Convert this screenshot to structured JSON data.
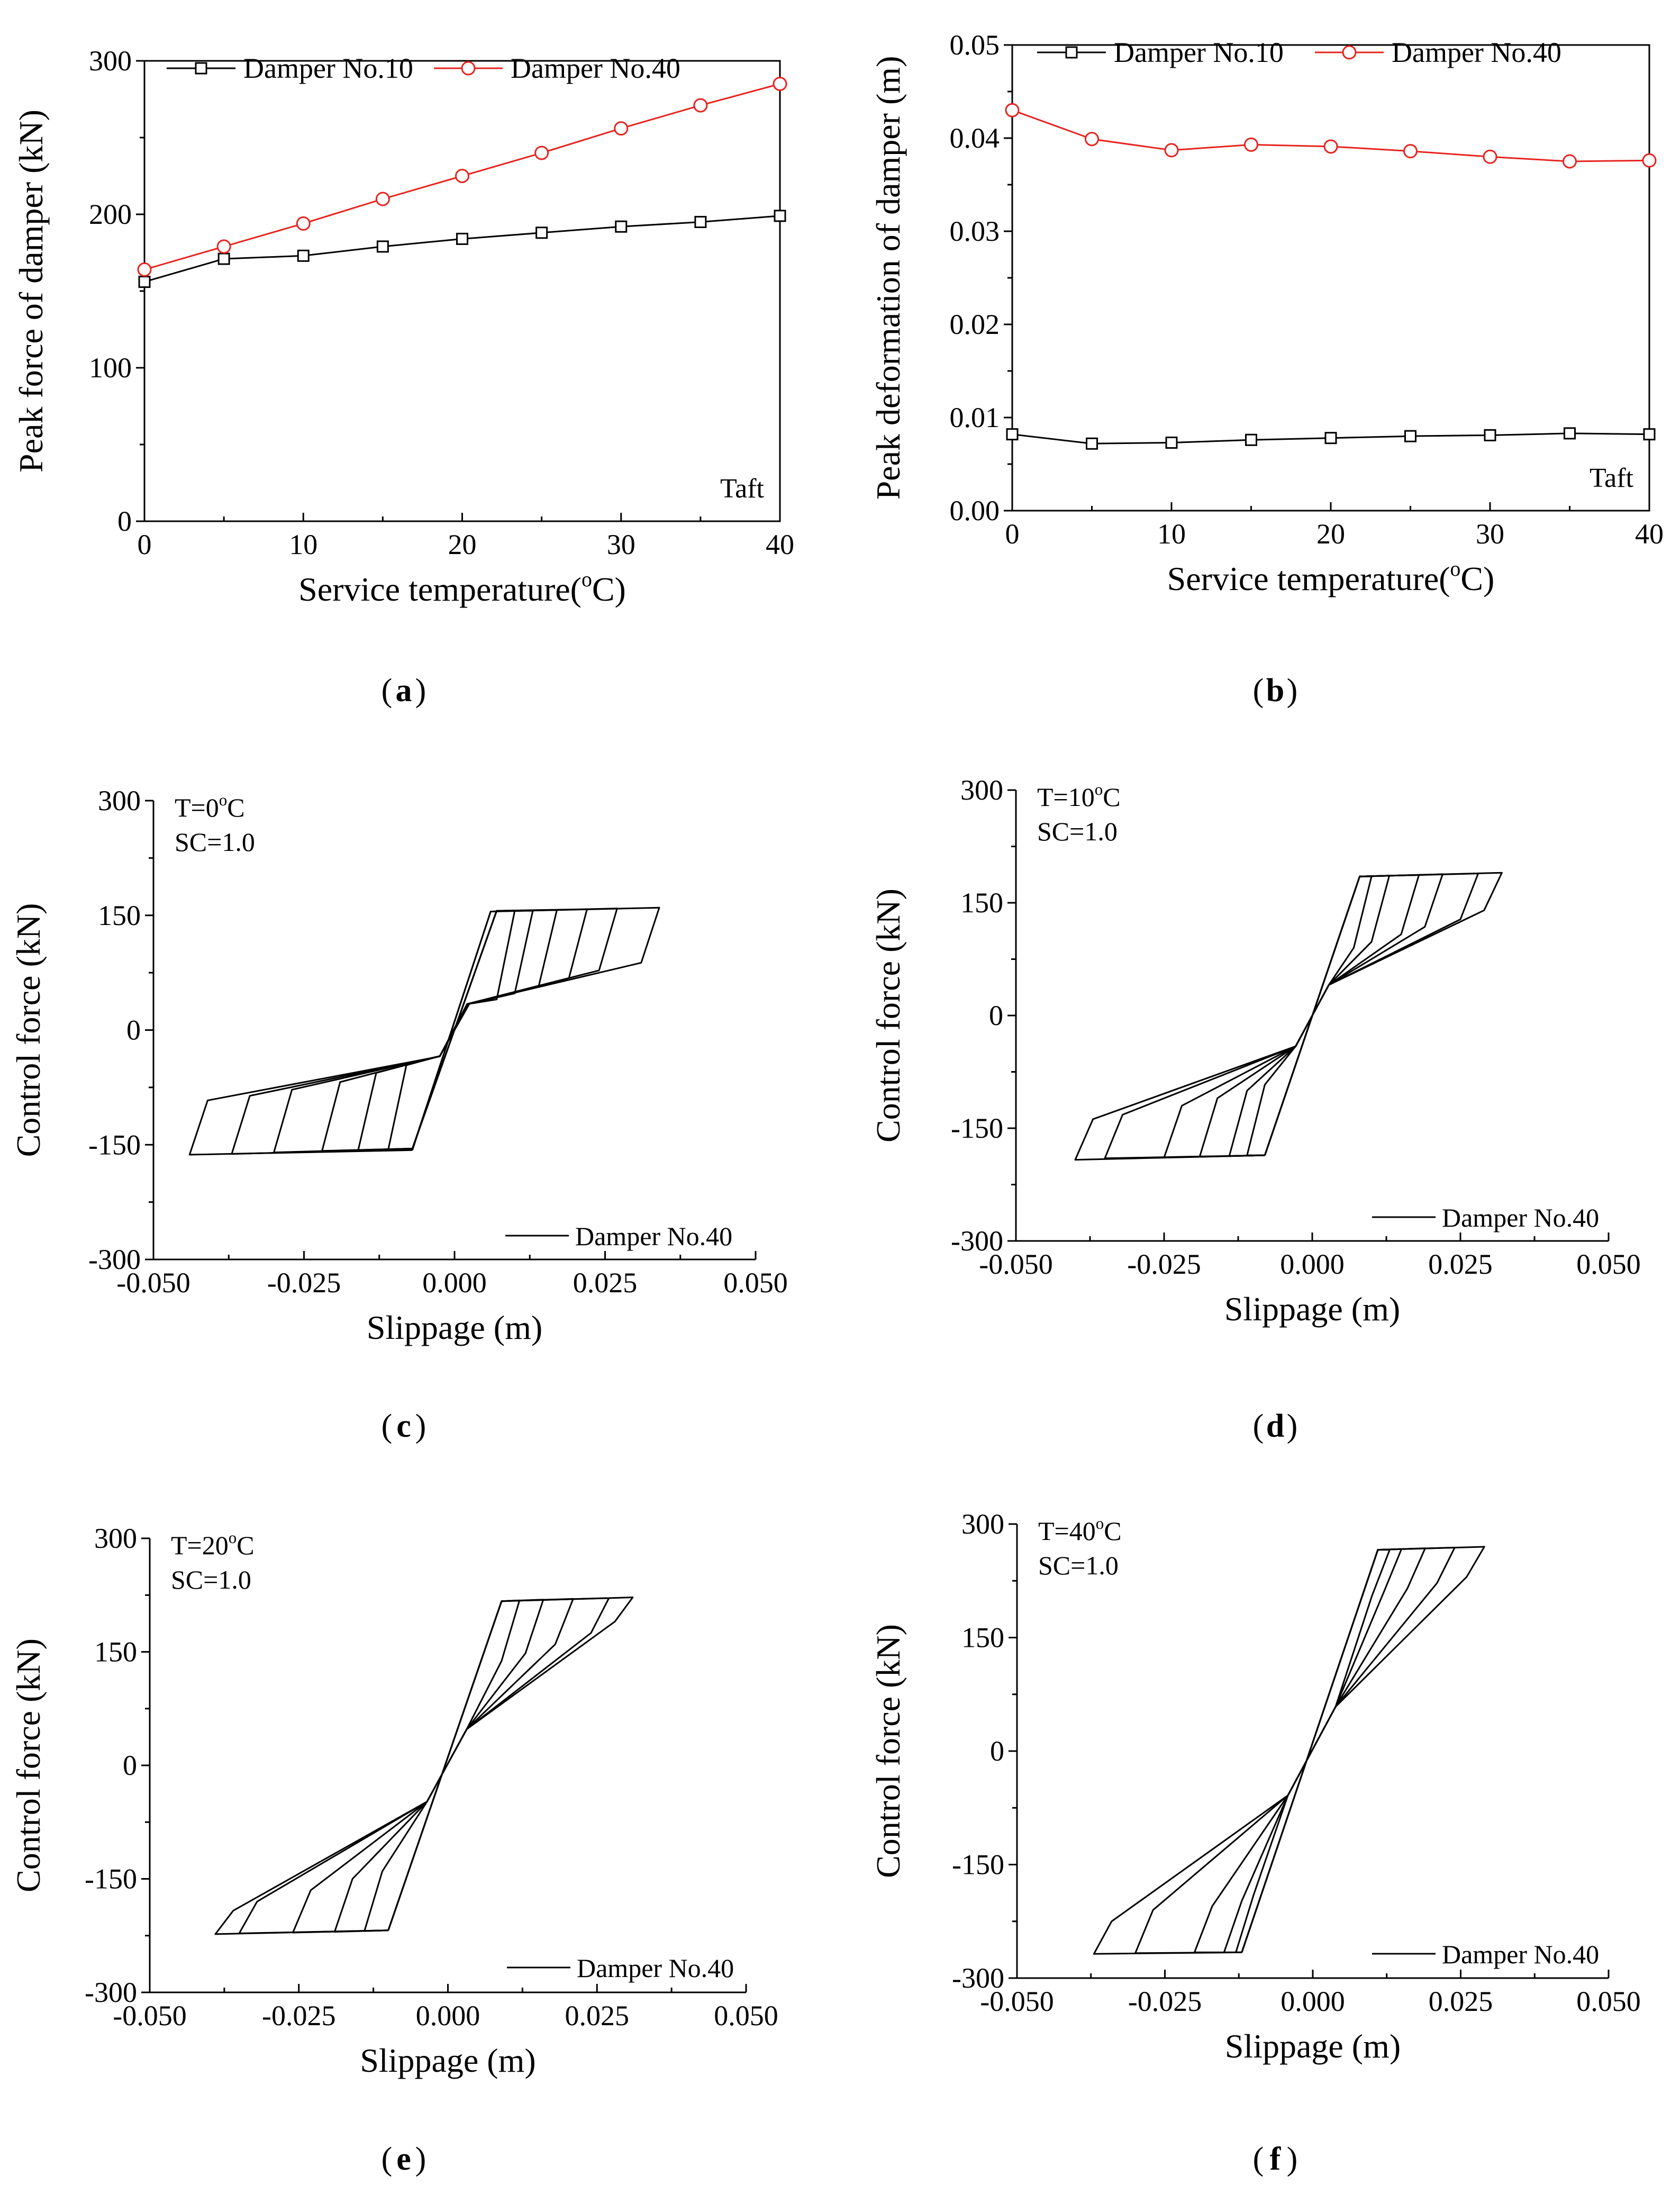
{
  "colors": {
    "black": "#000000",
    "red": "#e8231f",
    "white": "#ffffff"
  },
  "chart_data": [
    {
      "id": "a",
      "type": "line",
      "panel_label": "a",
      "xlabel": "Service temperature(°C)",
      "ylabel": "Peak force of damper (kN)",
      "xlim": [
        0,
        40
      ],
      "ylim": [
        0,
        300
      ],
      "xticks": [
        0,
        10,
        20,
        30,
        40
      ],
      "yticks": [
        0,
        100,
        200,
        300
      ],
      "x": [
        0,
        5,
        10,
        15,
        20,
        25,
        30,
        35,
        40
      ],
      "series": [
        {
          "name": "Damper No.10",
          "marker": "square",
          "color": "#000000",
          "values": [
            156,
            171,
            173,
            179,
            184,
            188,
            192,
            195,
            199
          ]
        },
        {
          "name": "Damper No.40",
          "marker": "circle",
          "color": "#e8231f",
          "values": [
            164,
            179,
            194,
            210,
            225,
            240,
            256,
            271,
            285
          ]
        }
      ],
      "annotation": "Taft",
      "legend_position": "top"
    },
    {
      "id": "b",
      "type": "line",
      "panel_label": "b",
      "xlabel": "Service temperature(°C)",
      "ylabel": "Peak deformation of damper (m)",
      "xlim": [
        0,
        40
      ],
      "ylim": [
        0,
        0.05
      ],
      "xticks": [
        0,
        10,
        20,
        30,
        40
      ],
      "yticks": [
        0.0,
        0.01,
        0.02,
        0.03,
        0.04,
        0.05
      ],
      "x": [
        0,
        5,
        10,
        15,
        20,
        25,
        30,
        35,
        40
      ],
      "series": [
        {
          "name": "Damper No.10",
          "marker": "square",
          "color": "#000000",
          "values": [
            0.0082,
            0.0072,
            0.0073,
            0.0076,
            0.0078,
            0.008,
            0.0081,
            0.0083,
            0.0082
          ]
        },
        {
          "name": "Damper No.40",
          "marker": "circle",
          "color": "#e8231f",
          "values": [
            0.043,
            0.0399,
            0.0387,
            0.0393,
            0.0391,
            0.0386,
            0.038,
            0.0375,
            0.0376
          ]
        }
      ],
      "annotation": "Taft",
      "legend_position": "top"
    },
    {
      "id": "c",
      "type": "line",
      "subtype": "hysteresis",
      "panel_label": "c",
      "xlabel": "Slippage (m)",
      "ylabel": "Control force (kN)",
      "xlim": [
        -0.05,
        0.05
      ],
      "ylim": [
        -300,
        300
      ],
      "xticks": [
        -0.05,
        -0.025,
        0.0,
        0.025,
        0.05
      ],
      "xtick_labels": [
        "-0.050",
        "-0.025",
        "0.000",
        "0.025",
        "0.050"
      ],
      "yticks": [
        -300,
        -150,
        0,
        150,
        300
      ],
      "texts": [
        "T=0°C",
        "SC=1.0"
      ],
      "legend": "Damper No.40",
      "legend_position": "bottom-right",
      "series": [
        {
          "name": "Damper No.40",
          "color": "#000000",
          "loops": [
            {
              "pos": {
                "xs": 0.006,
                "ys": 155,
                "xe": 0.034,
                "f": 160,
                "ret": 88
              },
              "neg": {
                "xs": -0.007,
                "ys": -157,
                "xe": -0.044,
                "f": -163,
                "ret": -92
              }
            },
            {
              "pos": {
                "xs": 0.006,
                "ys": 155,
                "xe": 0.027,
                "f": 159,
                "ret": 78
              },
              "neg": {
                "xs": -0.007,
                "ys": -156,
                "xe": -0.037,
                "f": -162,
                "ret": -86
              }
            },
            {
              "pos": {
                "xs": 0.007,
                "ys": 156,
                "xe": 0.022,
                "f": 158,
                "ret": 68
              },
              "neg": {
                "xs": -0.007,
                "ys": -155,
                "xe": -0.03,
                "f": -160,
                "ret": -78
              }
            },
            {
              "pos": {
                "xs": 0.007,
                "ys": 156,
                "xe": 0.017,
                "f": 157,
                "ret": 58
              },
              "neg": {
                "xs": -0.007,
                "ys": -155,
                "xe": -0.022,
                "f": -158,
                "ret": -68
              }
            },
            {
              "pos": {
                "xs": 0.007,
                "ys": 156,
                "xe": 0.013,
                "f": 156,
                "ret": 48
              },
              "neg": {
                "xs": -0.007,
                "ys": -155,
                "xe": -0.016,
                "f": -157,
                "ret": -56
              }
            },
            {
              "pos": {
                "xs": 0.007,
                "ys": 156,
                "xe": 0.01,
                "f": 156,
                "ret": 40
              },
              "neg": {
                "xs": -0.007,
                "ys": -155,
                "xe": -0.011,
                "f": -156,
                "ret": -46
              }
            }
          ]
        }
      ]
    },
    {
      "id": "d",
      "type": "line",
      "subtype": "hysteresis",
      "panel_label": "d",
      "xlabel": "Slippage (m)",
      "ylabel": "Control force (kN)",
      "xlim": [
        -0.05,
        0.05
      ],
      "ylim": [
        -300,
        300
      ],
      "xticks": [
        -0.05,
        -0.025,
        0.0,
        0.025,
        0.05
      ],
      "xtick_labels": [
        "-0.050",
        "-0.025",
        "0.000",
        "0.025",
        "0.050"
      ],
      "yticks": [
        -300,
        -150,
        0,
        150,
        300
      ],
      "texts": [
        "T=10°C",
        "SC=1.0"
      ],
      "legend": "Damper No.40",
      "legend_position": "bottom-right",
      "series": [
        {
          "name": "Damper No.40",
          "color": "#000000",
          "loops": [
            {
              "pos": {
                "xs": 0.008,
                "ys": 185,
                "xe": 0.032,
                "f": 190,
                "ret": 140
              },
              "neg": {
                "xs": -0.008,
                "ys": -186,
                "xe": -0.04,
                "f": -192,
                "ret": -138
              }
            },
            {
              "pos": {
                "xs": 0.008,
                "ys": 185,
                "xe": 0.028,
                "f": 189,
                "ret": 128
              },
              "neg": {
                "xs": -0.008,
                "ys": -186,
                "xe": -0.035,
                "f": -190,
                "ret": -132
              }
            },
            {
              "pos": {
                "xs": 0.008,
                "ys": 185,
                "xe": 0.022,
                "f": 188,
                "ret": 118
              },
              "neg": {
                "xs": -0.008,
                "ys": -186,
                "xe": -0.025,
                "f": -189,
                "ret": -120
              }
            },
            {
              "pos": {
                "xs": 0.008,
                "ys": 185,
                "xe": 0.018,
                "f": 187,
                "ret": 108
              },
              "neg": {
                "xs": -0.008,
                "ys": -186,
                "xe": -0.019,
                "f": -188,
                "ret": -110
              }
            },
            {
              "pos": {
                "xs": 0.008,
                "ys": 185,
                "xe": 0.013,
                "f": 186,
                "ret": 98
              },
              "neg": {
                "xs": -0.008,
                "ys": -186,
                "xe": -0.014,
                "f": -187,
                "ret": -100
              }
            },
            {
              "pos": {
                "xs": 0.008,
                "ys": 185,
                "xe": 0.01,
                "f": 185,
                "ret": 90
              },
              "neg": {
                "xs": -0.008,
                "ys": -186,
                "xe": -0.011,
                "f": -186,
                "ret": -92
              }
            }
          ]
        }
      ]
    },
    {
      "id": "e",
      "type": "line",
      "subtype": "hysteresis",
      "panel_label": "e",
      "xlabel": "Slippage (m)",
      "ylabel": "Control force (kN)",
      "xlim": [
        -0.05,
        0.05
      ],
      "ylim": [
        -300,
        300
      ],
      "xticks": [
        -0.05,
        -0.025,
        0.0,
        0.025,
        0.05
      ],
      "xtick_labels": [
        "-0.050",
        "-0.025",
        "0.000",
        "0.025",
        "0.050"
      ],
      "yticks": [
        -300,
        -150,
        0,
        150,
        300
      ],
      "texts": [
        "T=20°C",
        "SC=1.0"
      ],
      "legend": "Damper No.40",
      "legend_position": "bottom-right",
      "series": [
        {
          "name": "Damper No.40",
          "color": "#000000",
          "loops": [
            {
              "pos": {
                "xs": 0.009,
                "ys": 217,
                "xe": 0.031,
                "f": 222,
                "ret": 190
              },
              "neg": {
                "xs": -0.01,
                "ys": -218,
                "xe": -0.039,
                "f": -223,
                "ret": -192
              }
            },
            {
              "pos": {
                "xs": 0.009,
                "ys": 217,
                "xe": 0.027,
                "f": 221,
                "ret": 175
              },
              "neg": {
                "xs": -0.01,
                "ys": -218,
                "xe": -0.035,
                "f": -222,
                "ret": -180
              }
            },
            {
              "pos": {
                "xs": 0.009,
                "ys": 217,
                "xe": 0.021,
                "f": 220,
                "ret": 160
              },
              "neg": {
                "xs": -0.01,
                "ys": -218,
                "xe": -0.026,
                "f": -221,
                "ret": -165
              }
            },
            {
              "pos": {
                "xs": 0.009,
                "ys": 217,
                "xe": 0.016,
                "f": 219,
                "ret": 148
              },
              "neg": {
                "xs": -0.01,
                "ys": -218,
                "xe": -0.019,
                "f": -220,
                "ret": -150
              }
            },
            {
              "pos": {
                "xs": 0.009,
                "ys": 217,
                "xe": 0.012,
                "f": 218,
                "ret": 138
              },
              "neg": {
                "xs": -0.01,
                "ys": -218,
                "xe": -0.014,
                "f": -219,
                "ret": -140
              }
            }
          ]
        }
      ]
    },
    {
      "id": "f",
      "type": "line",
      "subtype": "hysteresis",
      "panel_label": "f",
      "xlabel": "Slippage (m)",
      "ylabel": "Control force (kN)",
      "xlim": [
        -0.05,
        0.05
      ],
      "ylim": [
        -300,
        300
      ],
      "xticks": [
        -0.05,
        -0.025,
        0.0,
        0.025,
        0.05
      ],
      "xtick_labels": [
        "-0.050",
        "-0.025",
        "0.000",
        "0.025",
        "0.050"
      ],
      "yticks": [
        -300,
        -150,
        0,
        150,
        300
      ],
      "texts": [
        "T=40°C",
        "SC=1.0"
      ],
      "legend": "Damper No.40",
      "legend_position": "bottom-right",
      "series": [
        {
          "name": "Damper No.40",
          "color": "#000000",
          "loops": [
            {
              "pos": {
                "xs": 0.011,
                "ys": 266,
                "xe": 0.029,
                "f": 270,
                "ret": 230
              },
              "neg": {
                "xs": -0.012,
                "ys": -266,
                "xe": -0.037,
                "f": -268,
                "ret": -225
              }
            },
            {
              "pos": {
                "xs": 0.011,
                "ys": 266,
                "xe": 0.024,
                "f": 269,
                "ret": 222
              },
              "neg": {
                "xs": -0.012,
                "ys": -266,
                "xe": -0.03,
                "f": -267,
                "ret": -210
              }
            },
            {
              "pos": {
                "xs": 0.011,
                "ys": 266,
                "xe": 0.019,
                "f": 268,
                "ret": 215
              },
              "neg": {
                "xs": -0.012,
                "ys": -266,
                "xe": -0.02,
                "f": -266,
                "ret": -205
              }
            },
            {
              "pos": {
                "xs": 0.011,
                "ys": 266,
                "xe": 0.015,
                "f": 267,
                "ret": 210
              },
              "neg": {
                "xs": -0.012,
                "ys": -266,
                "xe": -0.015,
                "f": -266,
                "ret": -198
              }
            },
            {
              "pos": {
                "xs": 0.011,
                "ys": 266,
                "xe": 0.013,
                "f": 266,
                "ret": 205
              },
              "neg": {
                "xs": -0.012,
                "ys": -266,
                "xe": -0.013,
                "f": -266,
                "ret": -190
              }
            }
          ]
        }
      ]
    }
  ]
}
